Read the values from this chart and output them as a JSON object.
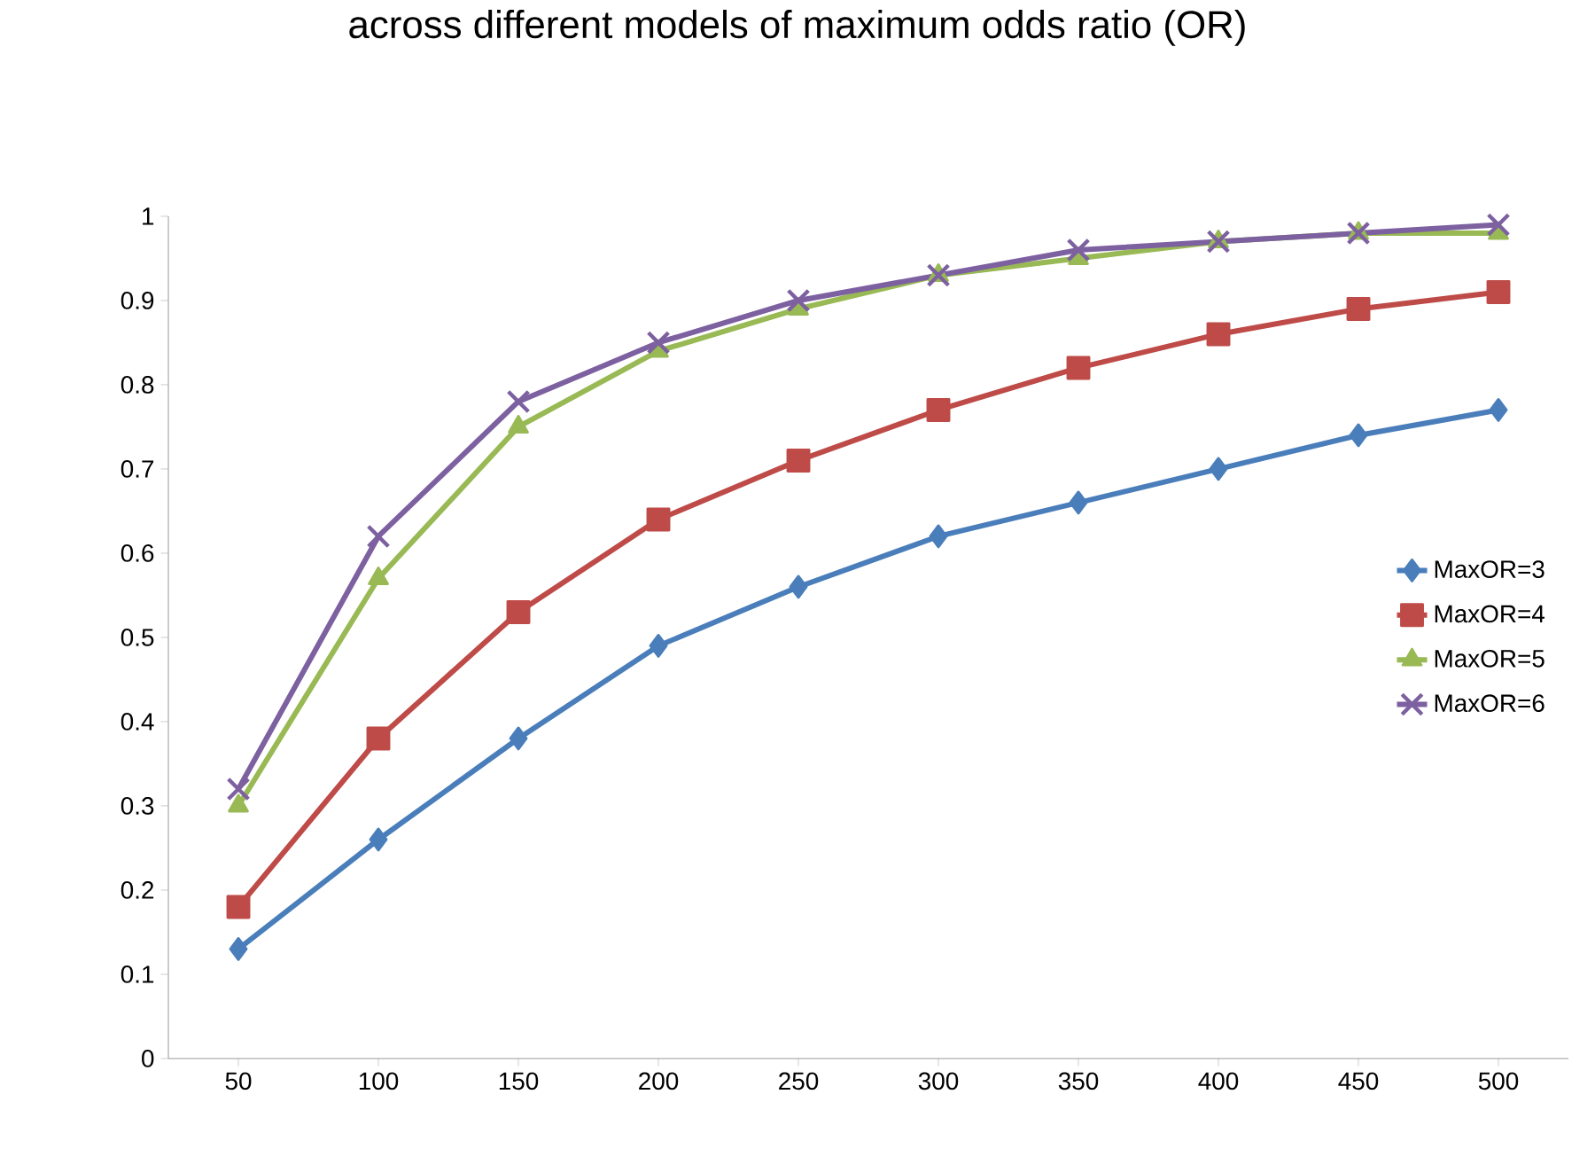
{
  "chart_data": {
    "type": "line",
    "title": "across different models of maximum odds ratio (OR)",
    "categories": [
      "50",
      "100",
      "150",
      "200",
      "250",
      "300",
      "350",
      "400",
      "450",
      "500"
    ],
    "ylim": [
      0,
      1
    ],
    "yticks": [
      0,
      0.1,
      0.2,
      0.3,
      0.4,
      0.5,
      0.6,
      0.7,
      0.8,
      0.9,
      1
    ],
    "legend": "right",
    "grid": false,
    "series": [
      {
        "name": "MaxOR=3",
        "color": "#4a7ebb",
        "marker": "diamond",
        "values": [
          0.13,
          0.26,
          0.38,
          0.49,
          0.56,
          0.62,
          0.66,
          0.7,
          0.74,
          0.77
        ]
      },
      {
        "name": "MaxOR=4",
        "color": "#be4b48",
        "marker": "square",
        "values": [
          0.18,
          0.38,
          0.53,
          0.64,
          0.71,
          0.77,
          0.82,
          0.86,
          0.89,
          0.91
        ]
      },
      {
        "name": "MaxOR=5",
        "color": "#98b954",
        "marker": "triangle",
        "values": [
          0.3,
          0.57,
          0.75,
          0.84,
          0.89,
          0.93,
          0.95,
          0.97,
          0.98,
          0.98
        ]
      },
      {
        "name": "MaxOR=6",
        "color": "#7d60a0",
        "marker": "cross",
        "values": [
          0.32,
          0.62,
          0.78,
          0.85,
          0.9,
          0.93,
          0.96,
          0.97,
          0.98,
          0.99
        ]
      }
    ]
  }
}
